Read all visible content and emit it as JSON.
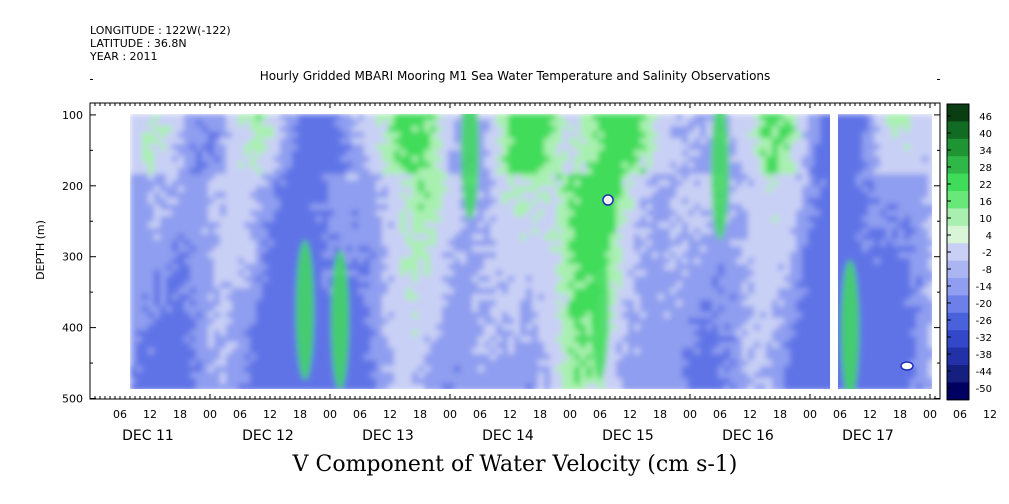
{
  "header": {
    "longitude": "LONGITUDE : 122W(-122)",
    "latitude": "LATITUDE : 36.8N",
    "year": "YEAR : 2011"
  },
  "chart_data": {
    "type": "heatmap",
    "title": "Hourly Gridded MBARI Mooring M1 Sea Water Temperature and Salinity Observations",
    "subtitle": "V Component of Water Velocity (cm s-1)",
    "ylabel": "DEPTH (m)",
    "xlabel": "",
    "ylim": [
      500,
      0
    ],
    "y_ticks": [
      100,
      200,
      300,
      400,
      500
    ],
    "y_tick_labels": [
      "100",
      "200",
      "300",
      "400",
      "500"
    ],
    "x_hour_labels": [
      "06",
      "12",
      "18",
      "00",
      "06",
      "12",
      "18",
      "00",
      "06",
      "12",
      "18",
      "00",
      "06",
      "12",
      "18",
      "00",
      "06",
      "12",
      "18",
      "00",
      "06",
      "12",
      "18",
      "00",
      "06",
      "12",
      "18",
      "00",
      "06",
      "12",
      "18",
      "00"
    ],
    "x_day_labels": [
      "DEC 11",
      "DEC 12",
      "DEC 13",
      "DEC 14",
      "DEC 15",
      "DEC 16",
      "DEC 17"
    ],
    "data_start_hour": 0,
    "data_end_hour": 168,
    "colorbar_labels": [
      "46",
      "40",
      "34",
      "28",
      "22",
      "16",
      "10",
      "4",
      "-2",
      "-8",
      "-14",
      "-20",
      "-26",
      "-32",
      "-38",
      "-44",
      "-50"
    ],
    "colorbar_range": [
      -50,
      50
    ],
    "colors": {
      "high": "#0b3d12",
      "mid_green": "#3fdc5a",
      "light_green": "#a9f0b0",
      "near_zero": "#c9d0f5",
      "low_blue": "#8f9ef0",
      "deep_blue": "#1d2fb8",
      "min": "#000060"
    }
  }
}
